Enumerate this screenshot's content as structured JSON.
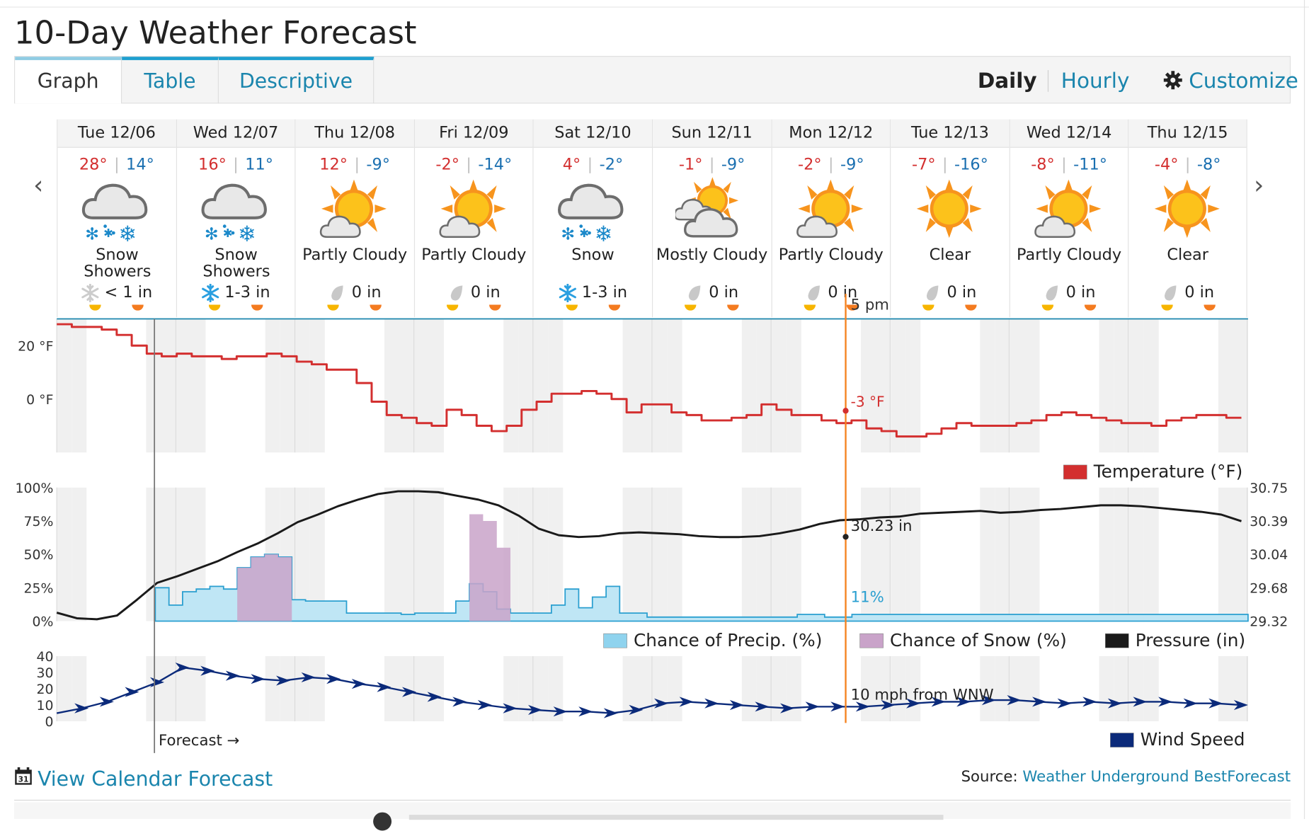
{
  "page": {
    "title": "10-Day Weather Forecast"
  },
  "tabs": [
    {
      "label": "Graph",
      "active": true
    },
    {
      "label": "Table",
      "active": false
    },
    {
      "label": "Descriptive",
      "active": false
    }
  ],
  "view_toggle": {
    "daily": "Daily",
    "hourly": "Hourly",
    "customize": "Customize"
  },
  "nav": {
    "prev_icon": "chevron-left-icon",
    "next_icon": "chevron-right-icon"
  },
  "days": [
    {
      "date": "Tue 12/06",
      "high": "28°",
      "low": "14°",
      "icon": "snow-showers-icon",
      "condition": "Snow Showers",
      "precip": "< 1 in",
      "precip_icon": "snowflake-gray-icon"
    },
    {
      "date": "Wed 12/07",
      "high": "16°",
      "low": "11°",
      "icon": "snow-showers-icon",
      "condition": "Snow Showers",
      "precip": "1-3 in",
      "precip_icon": "snowflake-blue-icon"
    },
    {
      "date": "Thu 12/08",
      "high": "12°",
      "low": "-9°",
      "icon": "partly-cloudy-icon",
      "condition": "Partly Cloudy",
      "precip": "0 in",
      "precip_icon": "raindrop-icon"
    },
    {
      "date": "Fri 12/09",
      "high": "-2°",
      "low": "-14°",
      "icon": "partly-cloudy-icon",
      "condition": "Partly Cloudy",
      "precip": "0 in",
      "precip_icon": "raindrop-icon"
    },
    {
      "date": "Sat 12/10",
      "high": "4°",
      "low": "-2°",
      "icon": "snow-icon",
      "condition": "Snow",
      "precip": "1-3 in",
      "precip_icon": "snowflake-blue-icon"
    },
    {
      "date": "Sun 12/11",
      "high": "-1°",
      "low": "-9°",
      "icon": "mostly-cloudy-icon",
      "condition": "Mostly Cloudy",
      "precip": "0 in",
      "precip_icon": "raindrop-icon"
    },
    {
      "date": "Mon 12/12",
      "high": "-2°",
      "low": "-9°",
      "icon": "partly-cloudy-icon",
      "condition": "Partly Cloudy",
      "precip": "0 in",
      "precip_icon": "raindrop-icon"
    },
    {
      "date": "Tue 12/13",
      "high": "-7°",
      "low": "-16°",
      "icon": "clear-icon",
      "condition": "Clear",
      "precip": "0 in",
      "precip_icon": "raindrop-icon"
    },
    {
      "date": "Wed 12/14",
      "high": "-8°",
      "low": "-11°",
      "icon": "partly-cloudy-icon",
      "condition": "Partly Cloudy",
      "precip": "0 in",
      "precip_icon": "raindrop-icon"
    },
    {
      "date": "Thu 12/15",
      "high": "-4°",
      "low": "-8°",
      "icon": "clear-icon",
      "condition": "Clear",
      "precip": "0 in",
      "precip_icon": "raindrop-icon"
    }
  ],
  "colors": {
    "temperature": "#d32f2f",
    "precip": "#8fd3ee",
    "snow": "#c9a3c9",
    "pressure": "#1a1a1a",
    "wind": "#0b2a7a",
    "cursor": "#f5821f",
    "link": "#1a85ad",
    "sun": "#f7b500"
  },
  "chart_data": [
    {
      "type": "line",
      "x": {
        "start": "Tue 12/06 00:00",
        "end": "Thu 12/15 24:00",
        "unit": "hours",
        "step": 3
      },
      "yticks": [
        "20 °F",
        "0 °F"
      ],
      "ylim": [
        -20,
        30
      ],
      "series": [
        {
          "name": "Temperature (°F)",
          "values": [
            28,
            27,
            27,
            26,
            24,
            20,
            17,
            16,
            17,
            16,
            16,
            15,
            16,
            16,
            17,
            16,
            14,
            13,
            11,
            11,
            6,
            -1,
            -6,
            -7,
            -9,
            -10,
            -4,
            -6,
            -10,
            -12,
            -10,
            -4,
            -1,
            2,
            2,
            3,
            2,
            0,
            -5,
            -2,
            -2,
            -5,
            -6,
            -8,
            -8,
            -7,
            -6,
            -2,
            -4,
            -6,
            -6,
            -8,
            -9,
            -8,
            -11,
            -12,
            -14,
            -14,
            -13,
            -11,
            -9,
            -10,
            -10,
            -10,
            -9,
            -8,
            -6,
            -5,
            -6,
            -7,
            -8,
            -9,
            -9,
            -10,
            -8,
            -7,
            -6,
            -6,
            -7,
            -7
          ]
        }
      ],
      "cursor": {
        "time": "5 pm",
        "value_label": "-3 °F"
      },
      "legend": "Temperature (°F)"
    },
    {
      "type": "area",
      "yticks_left": [
        "100%",
        "75%",
        "50%",
        "25%",
        "0%"
      ],
      "yticks_right": [
        "30.75",
        "30.39",
        "30.04",
        "29.68",
        "29.32"
      ],
      "series": [
        {
          "name": "Chance of Precip. (%)",
          "values": [
            25,
            12,
            22,
            24,
            26,
            24,
            40,
            48,
            50,
            48,
            16,
            15,
            15,
            15,
            6,
            6,
            6,
            6,
            5,
            6,
            6,
            6,
            15,
            28,
            22,
            9,
            6,
            6,
            6,
            12,
            24,
            10,
            18,
            26,
            6,
            6,
            3,
            3,
            3,
            3,
            3,
            3,
            3,
            3,
            3,
            3,
            3,
            5,
            5,
            3,
            3,
            5,
            5,
            5,
            5,
            5,
            5,
            5,
            5,
            5,
            5,
            5,
            5,
            5,
            5,
            5,
            5,
            5,
            5,
            5,
            5,
            5,
            5,
            5,
            5,
            5,
            5,
            5,
            5,
            5
          ]
        },
        {
          "name": "Chance of Snow (%)",
          "values": [
            0,
            0,
            0,
            0,
            0,
            0,
            40,
            48,
            50,
            48,
            0,
            0,
            0,
            0,
            0,
            0,
            0,
            0,
            0,
            0,
            0,
            0,
            0,
            80,
            75,
            55,
            0,
            0,
            0,
            0,
            0,
            0,
            0,
            0,
            0,
            0,
            0,
            0,
            0,
            0,
            0,
            0,
            0,
            0,
            0,
            0,
            0,
            0,
            0,
            0,
            0,
            0,
            0,
            0,
            0,
            0,
            0,
            0,
            0,
            0,
            0,
            0,
            0,
            0,
            0,
            0,
            0,
            0,
            0,
            0,
            0,
            0,
            0,
            0,
            0,
            0,
            0,
            0,
            0,
            0
          ]
        },
        {
          "name": "Pressure (in)",
          "values": [
            29.41,
            29.35,
            29.34,
            29.38,
            29.55,
            29.73,
            29.8,
            29.88,
            29.96,
            30.06,
            30.15,
            30.26,
            30.38,
            30.46,
            30.55,
            30.62,
            30.68,
            30.71,
            30.71,
            30.7,
            30.66,
            30.62,
            30.56,
            30.45,
            30.31,
            30.24,
            30.22,
            30.23,
            30.26,
            30.27,
            30.26,
            30.25,
            30.23,
            30.22,
            30.22,
            30.23,
            30.26,
            30.3,
            30.36,
            30.4,
            30.41,
            30.43,
            30.44,
            30.47,
            30.48,
            30.49,
            30.5,
            30.48,
            30.49,
            30.51,
            30.52,
            30.54,
            30.56,
            30.56,
            30.55,
            30.53,
            30.51,
            30.49,
            30.46,
            30.39
          ]
        }
      ],
      "cursor_labels": {
        "pressure": "30.23 in",
        "precip": "11%"
      },
      "legend": [
        "Chance of Precip. (%)",
        "Chance of Snow (%)",
        "Pressure (in)"
      ]
    },
    {
      "type": "line",
      "yticks": [
        "40",
        "30",
        "20",
        "10",
        "0"
      ],
      "ylim": [
        0,
        40
      ],
      "series": [
        {
          "name": "Wind Speed",
          "values": [
            5,
            8,
            12,
            18,
            24,
            33,
            31,
            28,
            26,
            25,
            27,
            26,
            23,
            21,
            18,
            15,
            12,
            10,
            8,
            7,
            6,
            6,
            5,
            7,
            11,
            12,
            11,
            10,
            9,
            8,
            9,
            9,
            9,
            10,
            11,
            12,
            12,
            13,
            13,
            12,
            11,
            12,
            11,
            12,
            12,
            11,
            11,
            10
          ]
        }
      ],
      "cursor_label": "10 mph from WNW",
      "forecast_label": "Forecast →",
      "legend": "Wind Speed"
    }
  ],
  "footer": {
    "calendar_link": "View Calendar Forecast",
    "source_label": "Source:",
    "source_link": "Weather Underground BestForecast"
  }
}
